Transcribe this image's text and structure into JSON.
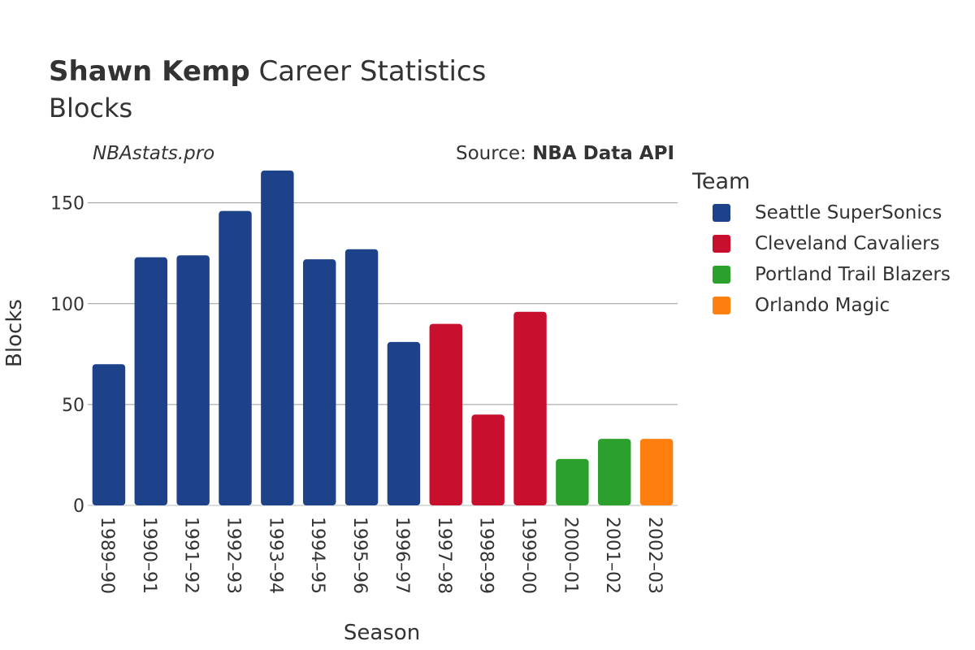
{
  "header": {
    "player": "Shawn Kemp",
    "title_rest": "Career Statistics",
    "subtitle": "Blocks",
    "credit": "NBAstats.pro",
    "source_label": "Source:",
    "source_name": "NBA Data API"
  },
  "legend": {
    "title": "Team",
    "items": [
      {
        "name": "Seattle SuperSonics",
        "color": "#1d428a"
      },
      {
        "name": "Cleveland Cavaliers",
        "color": "#c8102e"
      },
      {
        "name": "Portland Trail Blazers",
        "color": "#2ca02c"
      },
      {
        "name": "Orlando Magic",
        "color": "#ff7f0e"
      }
    ]
  },
  "chart_data": {
    "type": "bar",
    "xlabel": "Season",
    "ylabel": "Blocks",
    "ylim": [
      0,
      170
    ],
    "yticks": [
      0,
      50,
      100,
      150
    ],
    "grid": true,
    "legend_position": "right",
    "categories": [
      "1989–90",
      "1990–91",
      "1991–92",
      "1992–93",
      "1993–94",
      "1994–95",
      "1995–96",
      "1996–97",
      "1997–98",
      "1998–99",
      "1999–00",
      "2000–01",
      "2001–02",
      "2002–03"
    ],
    "values": [
      70,
      123,
      124,
      146,
      166,
      122,
      127,
      81,
      90,
      45,
      96,
      23,
      33,
      33
    ],
    "teams": [
      "Seattle SuperSonics",
      "Seattle SuperSonics",
      "Seattle SuperSonics",
      "Seattle SuperSonics",
      "Seattle SuperSonics",
      "Seattle SuperSonics",
      "Seattle SuperSonics",
      "Seattle SuperSonics",
      "Cleveland Cavaliers",
      "Cleveland Cavaliers",
      "Cleveland Cavaliers",
      "Portland Trail Blazers",
      "Portland Trail Blazers",
      "Orlando Magic"
    ]
  }
}
